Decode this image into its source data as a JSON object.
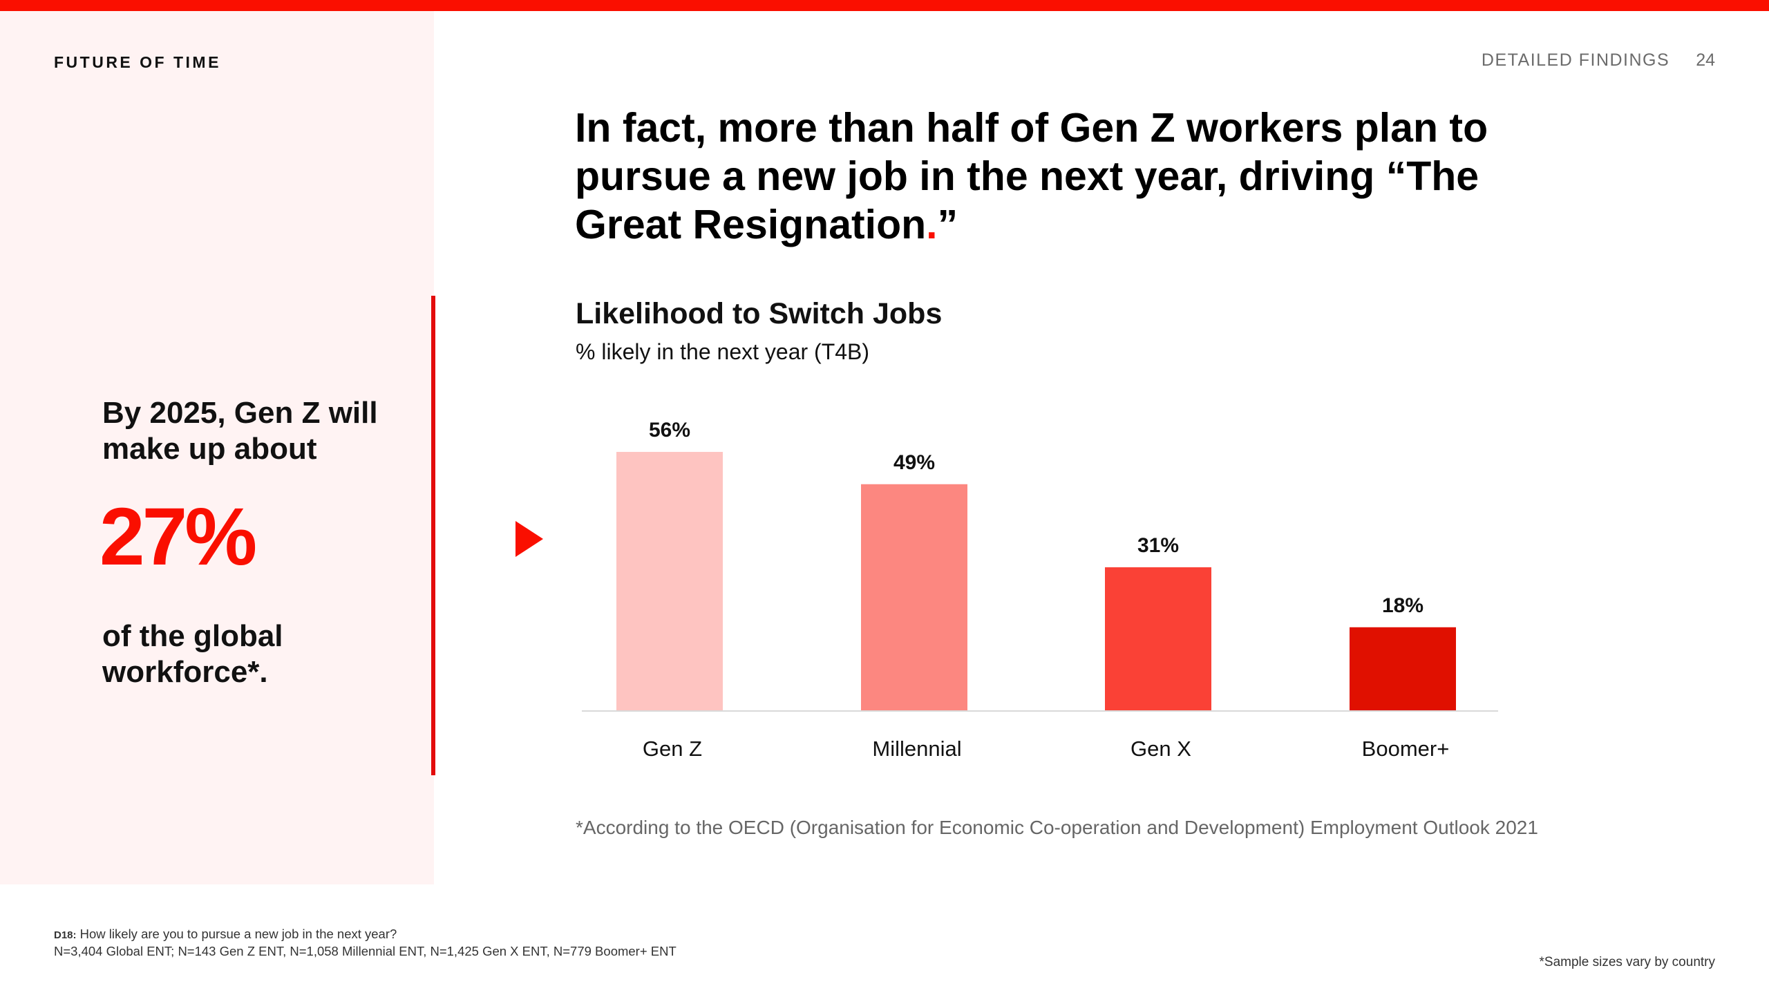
{
  "colors": {
    "accent": "#fa0f00",
    "panel_background": "#fff3f3",
    "bars": [
      "#fec4c1",
      "#fc8780",
      "#fa4136",
      "#e01000"
    ]
  },
  "header": {
    "brand": "FUTURE OF TIME",
    "section": "DETAILED FINDINGS",
    "page_number": "24"
  },
  "side_panel": {
    "lead": "By 2025, Gen Z will make up about",
    "stat": "27%",
    "tail": "of the global workforce*.",
    "arrow_icon": "play-triangle-icon"
  },
  "headline": {
    "text": "In fact, more than half of Gen Z workers plan to pursue a new job in the next year, driving “The Great Resignation",
    "dot": ".",
    "close_quote": "”"
  },
  "chart_data": {
    "type": "bar",
    "title": "Likelihood to Switch Jobs",
    "subtitle": "% likely in the next year (T4B)",
    "categories": [
      "Gen Z",
      "Millennial",
      "Gen X",
      "Boomer+"
    ],
    "values": [
      56,
      49,
      31,
      18
    ],
    "value_labels": [
      "56%",
      "49%",
      "31%",
      "18%"
    ],
    "xlabel": "",
    "ylabel": "",
    "ylim": [
      0,
      56
    ],
    "grid": false,
    "legend": "none"
  },
  "footnote": "*According to the OECD (Organisation for Economic Co-operation and Development) Employment Outlook 2021",
  "source": {
    "question_id": "D18:",
    "question": "How likely are you to pursue a new job in the next year?",
    "sample": "N=3,404 Global ENT; N=143 Gen Z ENT, N=1,058 Millennial ENT, N=1,425 Gen X ENT, N=779 Boomer+ ENT"
  },
  "sample_note": "*Sample sizes vary by country"
}
